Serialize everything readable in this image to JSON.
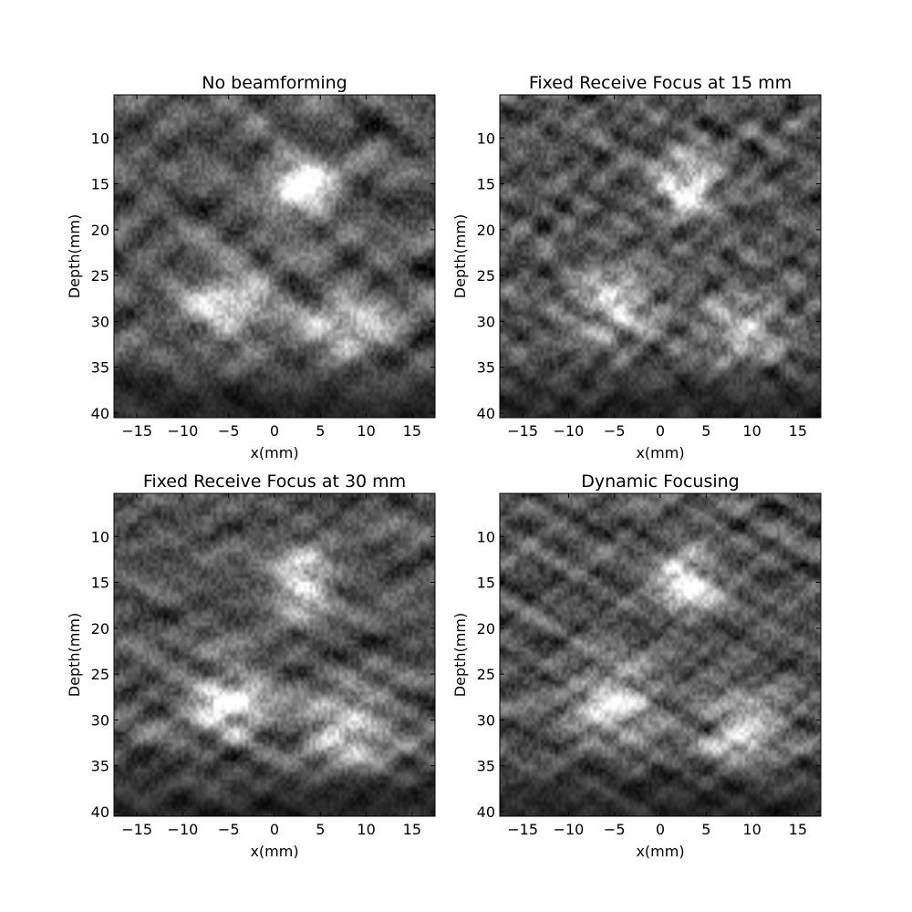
{
  "chart_data": [
    {
      "type": "heatmap",
      "title": "No beamforming",
      "xlabel": "x(mm)",
      "ylabel": "Depth(mm)",
      "xlim": [
        -17.5,
        17.5
      ],
      "ylim": [
        40.5,
        5.3
      ],
      "xticks": [
        -15,
        -10,
        -5,
        0,
        5,
        10,
        15
      ],
      "yticks": [
        10,
        15,
        20,
        25,
        30,
        35,
        40
      ],
      "colormap": "gray",
      "bright_regions": [
        {
          "x": 3,
          "depth": 15.5,
          "rx": 4.5,
          "rdepth": 4.5,
          "intensity": 0.95
        },
        {
          "x": -5,
          "depth": 28,
          "rx": 6,
          "rdepth": 5,
          "intensity": 0.7
        },
        {
          "x": 8,
          "depth": 30.5,
          "rx": 6,
          "rdepth": 4.5,
          "intensity": 0.65
        }
      ],
      "speckle": "coarse"
    },
    {
      "type": "heatmap",
      "title": "Fixed Receive Focus at 15 mm",
      "xlabel": "x(mm)",
      "ylabel": "Depth(mm)",
      "xlim": [
        -17.5,
        17.5
      ],
      "ylim": [
        40.5,
        5.3
      ],
      "xticks": [
        -15,
        -10,
        -5,
        0,
        5,
        10,
        15
      ],
      "yticks": [
        10,
        15,
        20,
        25,
        30,
        35,
        40
      ],
      "colormap": "gray",
      "bright_regions": [
        {
          "x": 3,
          "depth": 15,
          "rx": 4,
          "rdepth": 4,
          "intensity": 0.95
        },
        {
          "x": -5,
          "depth": 28,
          "rx": 5.5,
          "rdepth": 5,
          "intensity": 0.65
        },
        {
          "x": 9,
          "depth": 31,
          "rx": 5.5,
          "rdepth": 4.5,
          "intensity": 0.55
        }
      ],
      "speckle": "fine"
    },
    {
      "type": "heatmap",
      "title": "Fixed Receive Focus at 30 mm",
      "xlabel": "x(mm)",
      "ylabel": "Depth(mm)",
      "xlim": [
        -17.5,
        17.5
      ],
      "ylim": [
        40.5,
        5.3
      ],
      "xticks": [
        -15,
        -10,
        -5,
        0,
        5,
        10,
        15
      ],
      "yticks": [
        10,
        15,
        20,
        25,
        30,
        35,
        40
      ],
      "colormap": "gray",
      "bright_regions": [
        {
          "x": 3,
          "depth": 15,
          "rx": 4,
          "rdepth": 4,
          "intensity": 0.95
        },
        {
          "x": -5,
          "depth": 28,
          "rx": 5.5,
          "rdepth": 5,
          "intensity": 0.8
        },
        {
          "x": 8,
          "depth": 31,
          "rx": 6,
          "rdepth": 4.5,
          "intensity": 0.75
        }
      ],
      "speckle": "medium"
    },
    {
      "type": "heatmap",
      "title": "Dynamic Focusing",
      "xlabel": "x(mm)",
      "ylabel": "Depth(mm)",
      "xlim": [
        -17.5,
        17.5
      ],
      "ylim": [
        40.5,
        5.3
      ],
      "xticks": [
        -15,
        -10,
        -5,
        0,
        5,
        10,
        15
      ],
      "yticks": [
        10,
        15,
        20,
        25,
        30,
        35,
        40
      ],
      "colormap": "gray",
      "bright_regions": [
        {
          "x": 3,
          "depth": 15,
          "rx": 4,
          "rdepth": 4,
          "intensity": 0.95
        },
        {
          "x": -5,
          "depth": 28,
          "rx": 5.5,
          "rdepth": 5,
          "intensity": 0.75
        },
        {
          "x": 9,
          "depth": 31,
          "rx": 5.5,
          "rdepth": 4.5,
          "intensity": 0.7
        }
      ],
      "speckle": "fine"
    }
  ]
}
